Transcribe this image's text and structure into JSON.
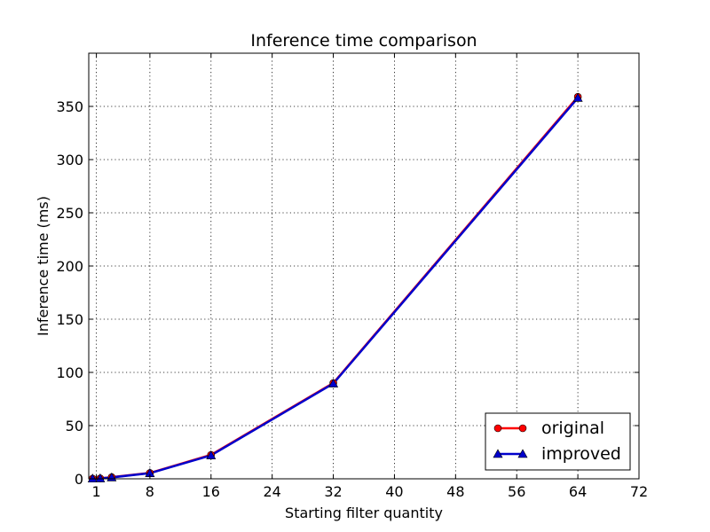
{
  "chart_data": {
    "type": "line",
    "title": "Inference time comparison",
    "xlabel": "Starting filter quantity",
    "ylabel": "Inference time (ms)",
    "xlim": [
      0,
      72
    ],
    "ylim": [
      0,
      400
    ],
    "xticks": [
      1,
      8,
      16,
      24,
      32,
      40,
      48,
      56,
      64,
      72
    ],
    "yticks": [
      0,
      50,
      100,
      150,
      200,
      250,
      300,
      350
    ],
    "grid": true,
    "legend_position": "bottom-right",
    "series": [
      {
        "name": "original",
        "color": "#ff0000",
        "marker": "circle",
        "x": [
          0.5,
          1.5,
          3,
          8,
          16,
          32,
          64
        ],
        "y": [
          0.2,
          0.4,
          1.5,
          5.5,
          22.5,
          90,
          359
        ]
      },
      {
        "name": "improved",
        "color": "#0000cc",
        "marker": "triangle",
        "x": [
          0.5,
          1.5,
          3,
          8,
          16,
          32,
          64
        ],
        "y": [
          0.2,
          0.4,
          1.3,
          5.3,
          22,
          89.5,
          358
        ]
      }
    ]
  }
}
